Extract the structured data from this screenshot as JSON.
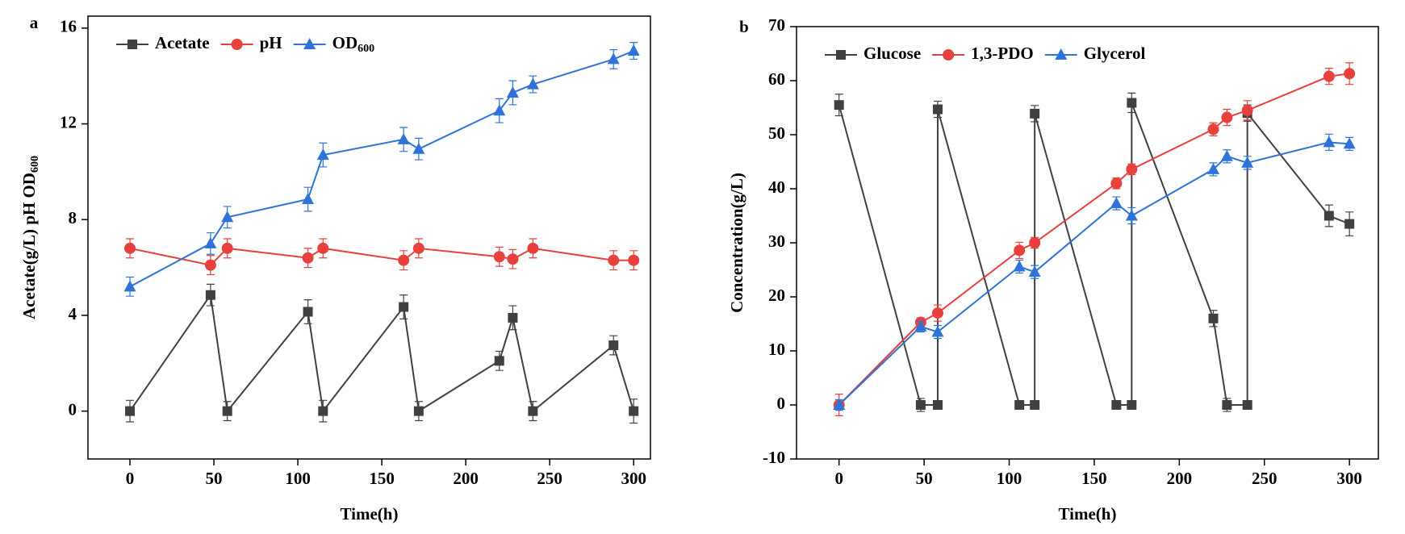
{
  "chart_data": [
    {
      "type": "line",
      "label": "a",
      "xlabel": "Time(h)",
      "ylabel": "Acetate(g/L)  pH  OD600",
      "xlim": [
        -25,
        310
      ],
      "ylim": [
        -2,
        16.5
      ],
      "xticks": [
        0,
        50,
        100,
        150,
        200,
        250,
        300
      ],
      "yticks": [
        0,
        4,
        8,
        12,
        16
      ],
      "series": [
        {
          "name": "Acetate",
          "color": "#404040",
          "marker": "square",
          "x": [
            0,
            48,
            58,
            106,
            115,
            163,
            172,
            220,
            228,
            240,
            288,
            300
          ],
          "values": [
            0,
            4.85,
            0,
            4.15,
            0,
            4.35,
            0,
            2.1,
            3.9,
            0,
            2.75,
            0
          ],
          "errors": [
            0.45,
            0.45,
            0.4,
            0.5,
            0.45,
            0.5,
            0.4,
            0.4,
            0.5,
            0.4,
            0.4,
            0.5
          ]
        },
        {
          "name": "pH",
          "color": "#e8403c",
          "marker": "circle",
          "x": [
            0,
            48,
            58,
            106,
            115,
            163,
            172,
            220,
            228,
            240,
            288,
            300
          ],
          "values": [
            6.8,
            6.1,
            6.8,
            6.4,
            6.8,
            6.3,
            6.8,
            6.45,
            6.35,
            6.8,
            6.3,
            6.3
          ],
          "errors": [
            0.4,
            0.4,
            0.4,
            0.4,
            0.4,
            0.4,
            0.4,
            0.4,
            0.4,
            0.4,
            0.4,
            0.4
          ]
        },
        {
          "name": "OD600",
          "color": "#2f72d8",
          "marker": "triangle",
          "x": [
            0,
            48,
            58,
            106,
            115,
            163,
            172,
            220,
            228,
            240,
            288,
            300
          ],
          "values": [
            5.2,
            7.0,
            8.1,
            8.85,
            10.7,
            11.35,
            10.95,
            12.55,
            13.3,
            13.65,
            14.7,
            15.05
          ],
          "errors": [
            0.4,
            0.45,
            0.45,
            0.5,
            0.5,
            0.5,
            0.45,
            0.5,
            0.5,
            0.35,
            0.4,
            0.35
          ]
        }
      ]
    },
    {
      "type": "line",
      "label": "b",
      "xlabel": "Time(h)",
      "ylabel": "Concentration(g/L)",
      "xlim": [
        -25,
        317
      ],
      "ylim": [
        -10,
        70
      ],
      "xticks": [
        0,
        50,
        100,
        150,
        200,
        250,
        300
      ],
      "yticks": [
        -10,
        0,
        10,
        20,
        30,
        40,
        50,
        60,
        70
      ],
      "series": [
        {
          "name": "Glucose",
          "color": "#404040",
          "marker": "square",
          "x": [
            0,
            48,
            58,
            58,
            106,
            115,
            115,
            163,
            172,
            172,
            220,
            228,
            240,
            240,
            288,
            300
          ],
          "values": [
            55.5,
            0,
            0,
            54.7,
            0,
            0,
            53.9,
            0,
            0,
            55.9,
            16,
            0,
            0,
            54,
            35,
            33.5
          ],
          "errors": [
            2,
            1.2,
            0.5,
            1.5,
            0.5,
            0.5,
            1.5,
            0.5,
            0.5,
            1.8,
            1.5,
            1.2,
            0.5,
            1.5,
            2,
            2.2
          ]
        },
        {
          "name": "1,3-PDO",
          "color": "#e8403c",
          "marker": "circle",
          "x": [
            0,
            48,
            58,
            106,
            115,
            163,
            172,
            220,
            228,
            240,
            288,
            300
          ],
          "values": [
            0,
            15.3,
            17,
            28.6,
            30,
            41,
            43.6,
            51,
            53.2,
            54.5,
            60.8,
            61.3
          ],
          "errors": [
            2,
            0.8,
            1.5,
            1.5,
            1,
            1,
            1,
            1.2,
            1.5,
            1.8,
            1.5,
            2
          ]
        },
        {
          "name": "Glycerol",
          "color": "#2f72d8",
          "marker": "triangle",
          "x": [
            0,
            48,
            58,
            106,
            115,
            163,
            172,
            220,
            228,
            240,
            288,
            300
          ],
          "values": [
            0,
            14.5,
            13.5,
            25.6,
            24.6,
            37.3,
            35,
            43.6,
            46,
            44.8,
            48.6,
            48.3
          ],
          "errors": [
            1,
            1,
            1.2,
            1.2,
            1.2,
            1.2,
            1.5,
            1.2,
            1.2,
            1.2,
            1.5,
            1.2
          ]
        }
      ]
    }
  ]
}
